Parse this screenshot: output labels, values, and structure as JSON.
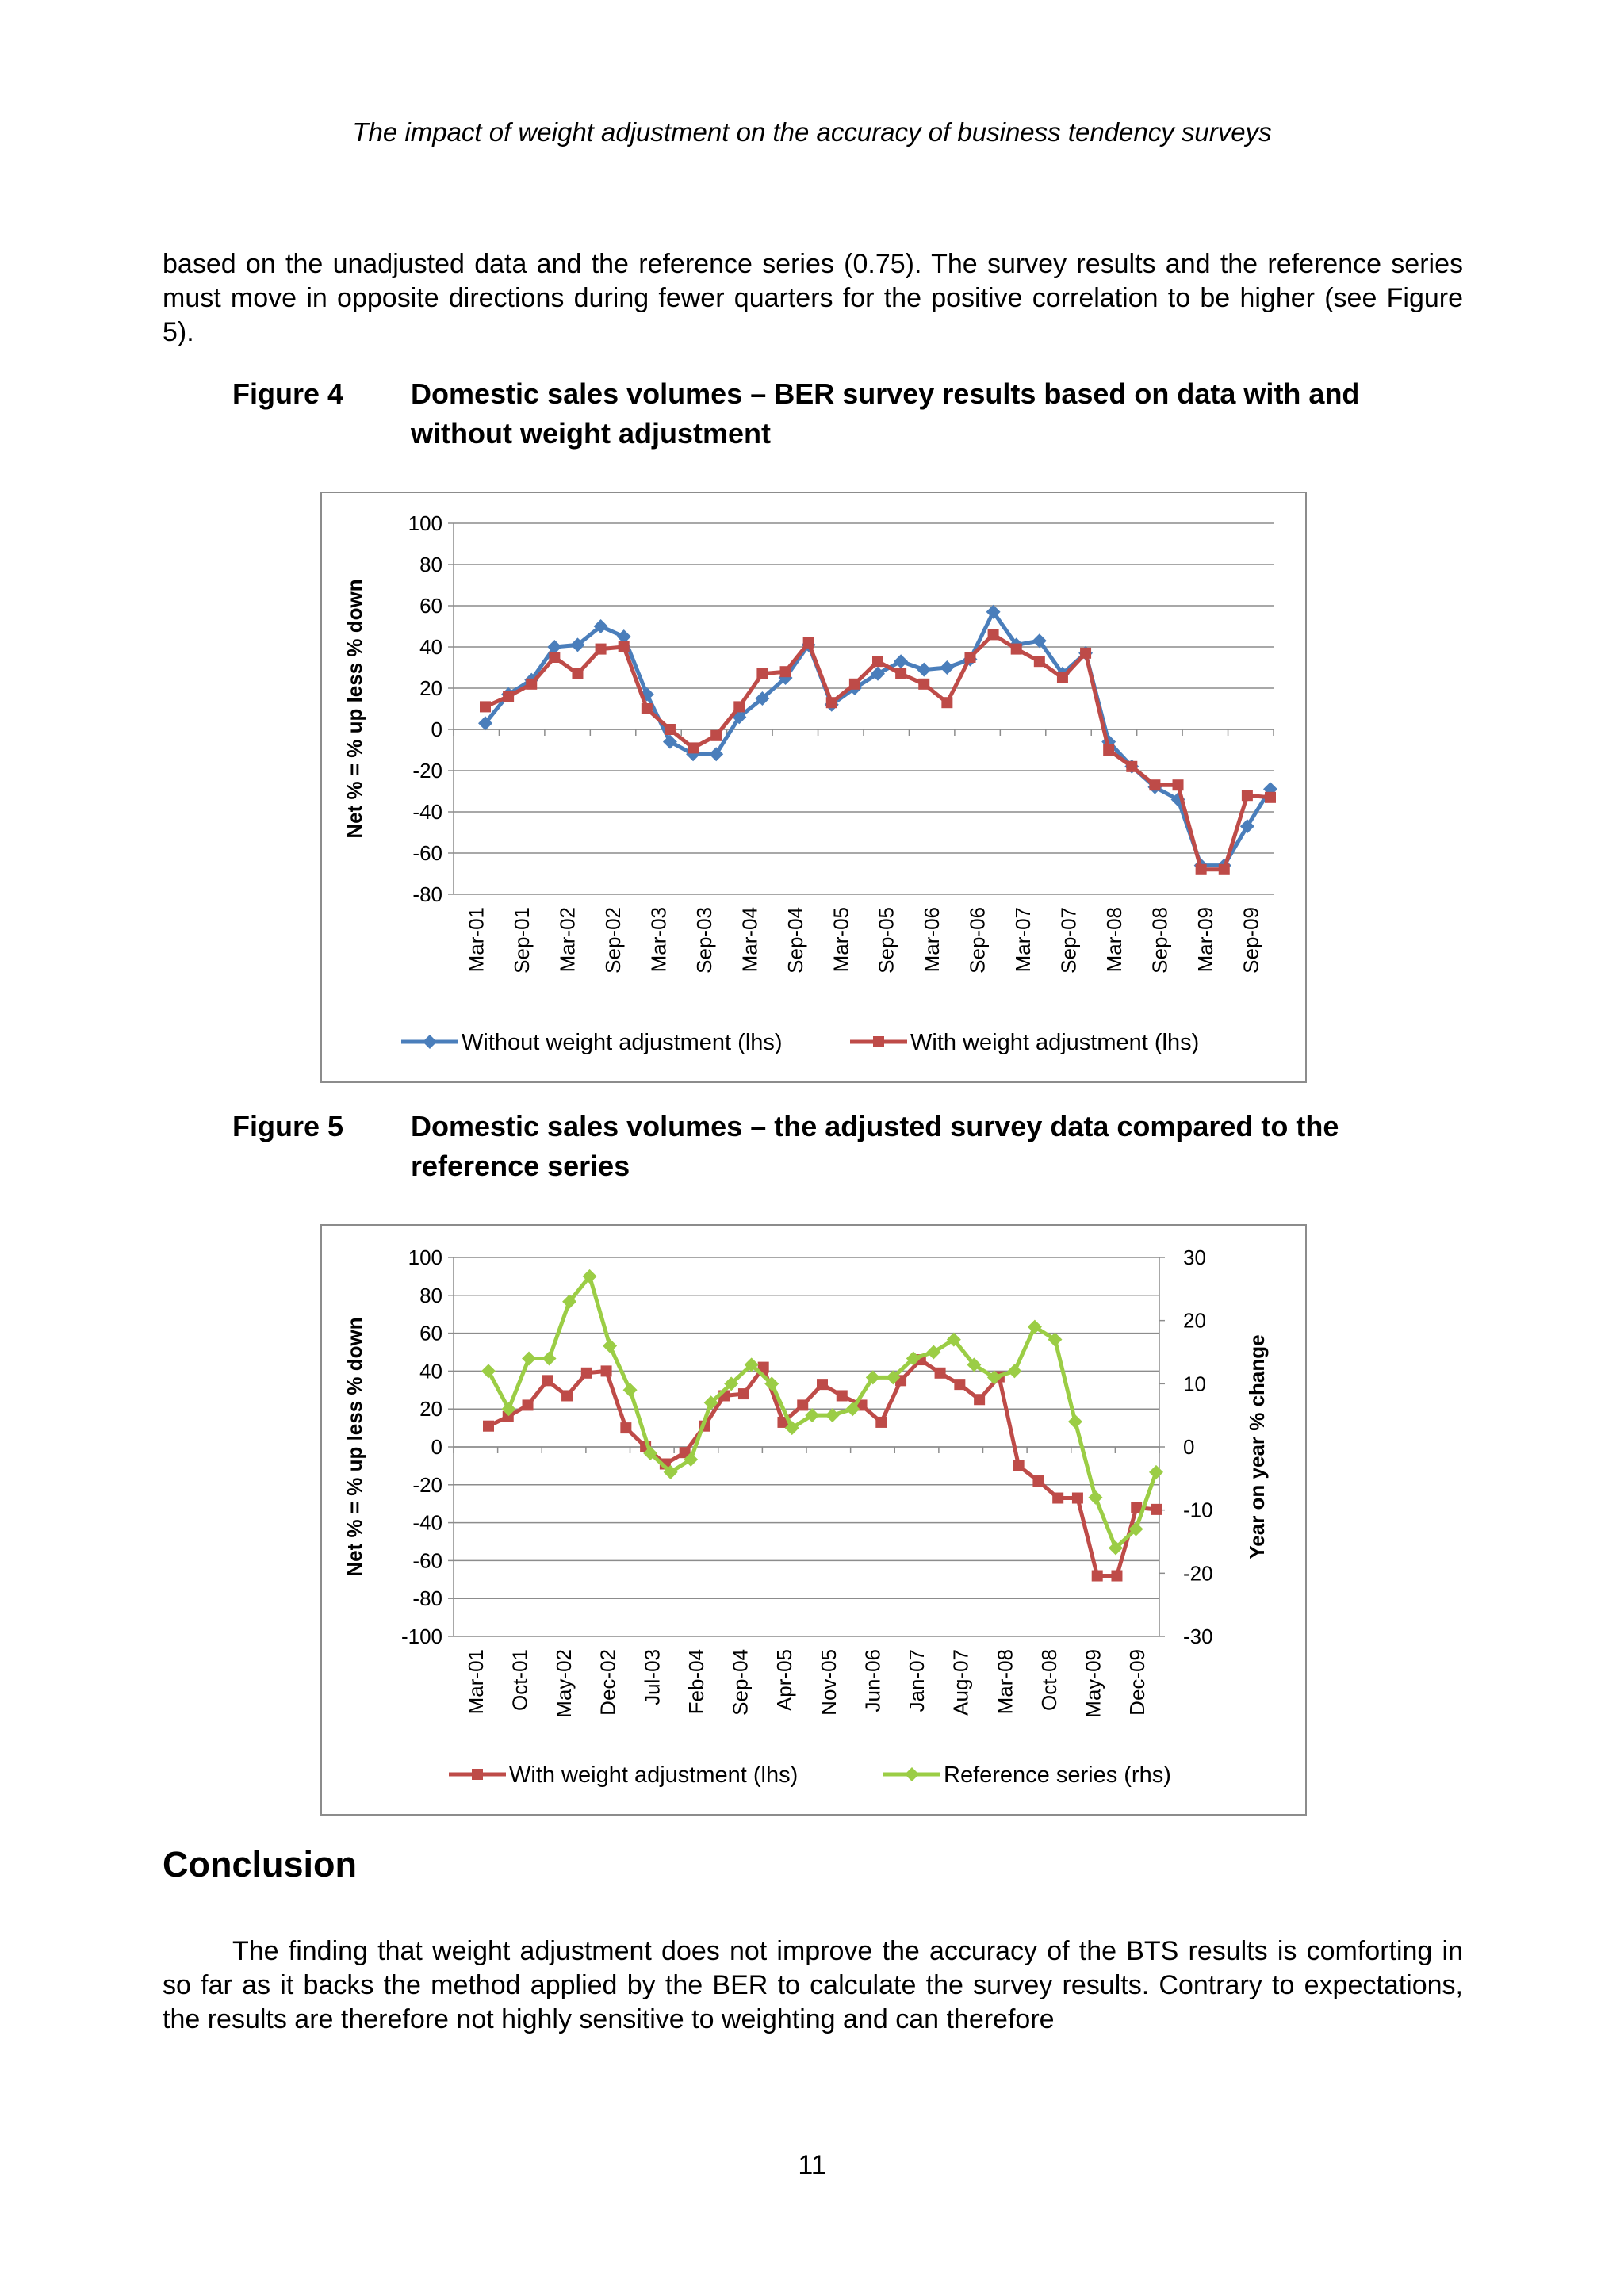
{
  "header": "The impact of weight adjustment on the accuracy of business tendency surveys",
  "paragraph1": "based on the unadjusted data and the reference series (0.75). The survey results and the reference series must move in opposite directions during fewer quarters for the positive correlation to be higher (see Figure 5).",
  "figure4": {
    "number": "Figure 4",
    "title": "Domestic sales volumes – BER survey results based on data with and without weight adjustment"
  },
  "figure5": {
    "number": "Figure 5",
    "title": "Domestic sales volumes – the adjusted survey data compared to the reference series"
  },
  "conclusion_heading": "Conclusion",
  "paragraph2": "The finding that weight adjustment does not improve the accuracy of the BTS results is comforting in so far as it backs the method applied by the BER to calculate the survey results. Contrary to expectations, the results are therefore not highly sensitive to weighting and can therefore",
  "page_number": "11",
  "colors": {
    "blue": "#4a7ebb",
    "red": "#be4b48",
    "green": "#9bcd45"
  },
  "chart_data": [
    {
      "type": "line",
      "ylabel": "Net % = % up less % down",
      "ylim": [
        -80,
        100
      ],
      "yticks": [
        -80,
        -60,
        -40,
        -20,
        0,
        20,
        40,
        60,
        80,
        100
      ],
      "tick_labels": [
        "Mar-01",
        "Sep-01",
        "Mar-02",
        "Sep-02",
        "Mar-03",
        "Sep-03",
        "Mar-04",
        "Sep-04",
        "Mar-05",
        "Sep-05",
        "Mar-06",
        "Sep-06",
        "Mar-07",
        "Sep-07",
        "Mar-08",
        "Sep-08",
        "Mar-09",
        "Sep-09"
      ],
      "grid": "horizontal",
      "legend": "bottom",
      "series": [
        {
          "name": "Without weight adjustment (lhs)",
          "color": "#4a7ebb",
          "marker": "diamond",
          "values": [
            3,
            17,
            24,
            40,
            41,
            50,
            45,
            17,
            -6,
            -12,
            -12,
            6,
            15,
            25,
            41,
            12,
            20,
            27,
            33,
            29,
            30,
            34,
            57,
            41,
            43,
            27,
            37,
            -6,
            -18,
            -28,
            -34,
            -66,
            -66,
            -47,
            -29
          ]
        },
        {
          "name": "With weight adjustment (lhs)",
          "color": "#be4b48",
          "marker": "square",
          "values": [
            11,
            16,
            22,
            35,
            27,
            39,
            40,
            10,
            0,
            -9,
            -3,
            11,
            27,
            28,
            42,
            13,
            22,
            33,
            27,
            22,
            13,
            35,
            46,
            39,
            33,
            25,
            37,
            -10,
            -18,
            -27,
            -27,
            -68,
            -68,
            -32,
            -33
          ]
        }
      ]
    },
    {
      "type": "line",
      "ylabel": "Net % = % up less % down",
      "y2label": "Year on year % change",
      "ylim": [
        -100,
        100
      ],
      "y2lim": [
        -30,
        30
      ],
      "yticks": [
        -100,
        -80,
        -60,
        -40,
        -20,
        0,
        20,
        40,
        60,
        80,
        100
      ],
      "y2ticks": [
        -30,
        -20,
        -10,
        0,
        10,
        20,
        30
      ],
      "tick_labels": [
        "Mar-01",
        "Oct-01",
        "May-02",
        "Dec-02",
        "Jul-03",
        "Feb-04",
        "Sep-04",
        "Apr-05",
        "Nov-05",
        "Jun-06",
        "Jan-07",
        "Aug-07",
        "Mar-08",
        "Oct-08",
        "May-09",
        "Dec-09"
      ],
      "grid": "horizontal",
      "legend": "bottom",
      "series": [
        {
          "name": "With weight adjustment (lhs)",
          "color": "#be4b48",
          "marker": "square",
          "axis": "left",
          "values": [
            11,
            16,
            22,
            35,
            27,
            39,
            40,
            10,
            0,
            -9,
            -3,
            11,
            27,
            28,
            42,
            13,
            22,
            33,
            27,
            22,
            13,
            35,
            46,
            39,
            33,
            25,
            37,
            -10,
            -18,
            -27,
            -27,
            -68,
            -68,
            -32,
            -33
          ]
        },
        {
          "name": "Reference series (rhs)",
          "color": "#9bcd45",
          "marker": "diamond",
          "axis": "right",
          "values": [
            12,
            6,
            14,
            14,
            23,
            27,
            16,
            9,
            -1,
            -4,
            -2,
            7,
            10,
            13,
            10,
            3,
            5,
            5,
            6,
            11,
            11,
            14,
            15,
            17,
            13,
            11,
            12,
            19,
            17,
            4,
            -8,
            -16,
            -13,
            -4
          ]
        }
      ]
    }
  ]
}
